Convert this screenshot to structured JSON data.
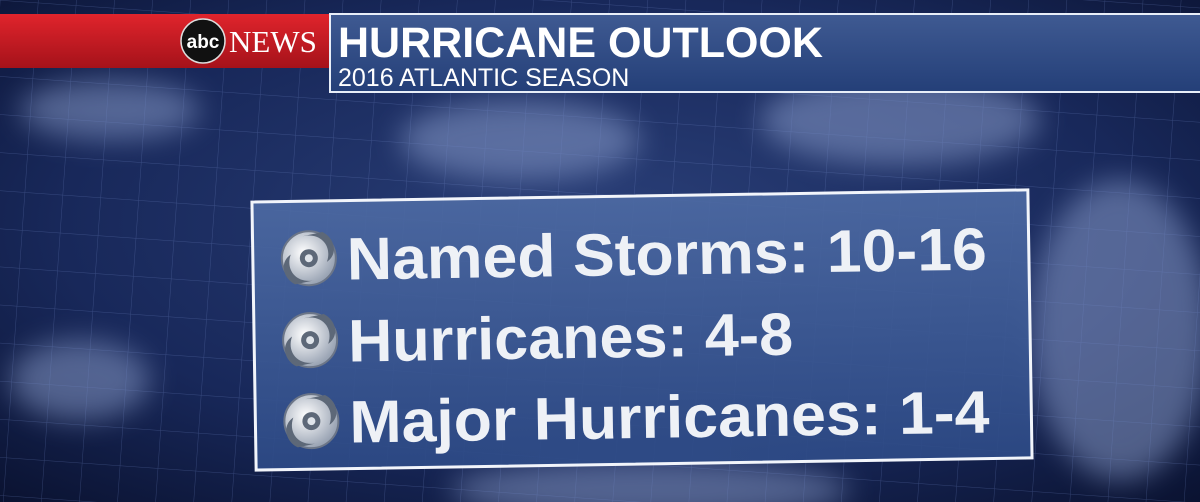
{
  "brand": {
    "logo": "abc",
    "name": "NEWS"
  },
  "header": {
    "title": "HURRICANE OUTLOOK",
    "subtitle": "2016 ATLANTIC SEASON"
  },
  "outlook": {
    "items": [
      "Named Storms: 10-16",
      "Hurricanes: 4-8",
      "Major Hurricanes: 1-4"
    ]
  }
}
